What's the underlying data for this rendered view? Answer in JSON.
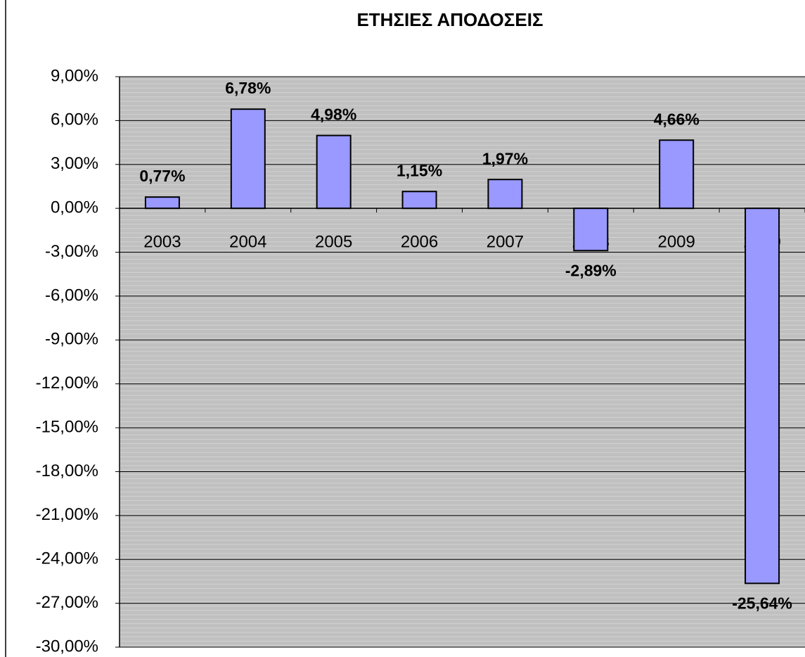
{
  "chart_data": {
    "type": "bar",
    "title": "ΕΤΗΣΙΕΣ ΑΠΟΔΟΣΕΙΣ",
    "categories": [
      "2003",
      "2004",
      "2005",
      "2006",
      "2007",
      "2008",
      "2009",
      "2010"
    ],
    "values": [
      0.77,
      6.78,
      4.98,
      1.15,
      1.97,
      -2.89,
      4.66,
      -25.64
    ],
    "value_labels": [
      "0,77%",
      "6,78%",
      "4,98%",
      "1,15%",
      "1,97%",
      "-2,89%",
      "4,66%",
      "-25,64%"
    ],
    "color": "#9999ff",
    "ylim": [
      -30,
      9
    ],
    "yticks": [
      {
        "value": 9,
        "label": "9,00%"
      },
      {
        "value": 6,
        "label": "6,00%"
      },
      {
        "value": 3,
        "label": "3,00%"
      },
      {
        "value": 0,
        "label": "0,00%"
      },
      {
        "value": -3,
        "label": "-3,00%"
      },
      {
        "value": -6,
        "label": "-6,00%"
      },
      {
        "value": -9,
        "label": "-9,00%"
      },
      {
        "value": -12,
        "label": "-12,00%"
      },
      {
        "value": -15,
        "label": "-15,00%"
      },
      {
        "value": -18,
        "label": "-18,00%"
      },
      {
        "value": -21,
        "label": "-21,00%"
      },
      {
        "value": -24,
        "label": "-24,00%"
      },
      {
        "value": -27,
        "label": "-27,00%"
      },
      {
        "value": -30,
        "label": "-30,00%"
      }
    ],
    "grid": true
  }
}
